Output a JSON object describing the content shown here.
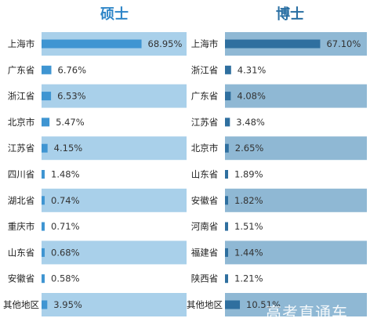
{
  "colors": {
    "left_title": "#2f86c8",
    "right_title": "#2a6fa3",
    "left_band": "#a9d0ea",
    "right_band": "#8fb8d4",
    "left_bar": "#3f95d2",
    "right_bar": "#2f6f9f"
  },
  "chart_data": [
    {
      "type": "bar",
      "orientation": "horizontal",
      "title": "硕士",
      "categories": [
        "上海市",
        "广东省",
        "浙江省",
        "北京市",
        "江苏省",
        "四川省",
        "湖北省",
        "重庆市",
        "山东省",
        "安徽省",
        "其他地区"
      ],
      "values": [
        68.95,
        6.76,
        6.53,
        5.47,
        4.15,
        1.48,
        0.74,
        0.71,
        0.68,
        0.58,
        3.95
      ],
      "labels": [
        "68.95%",
        "6.76%",
        "6.53%",
        "5.47%",
        "4.15%",
        "1.48%",
        "0.74%",
        "0.71%",
        "0.68%",
        "0.58%",
        "3.95%"
      ],
      "xlim": [
        0,
        100
      ]
    },
    {
      "type": "bar",
      "orientation": "horizontal",
      "title": "博士",
      "categories": [
        "上海市",
        "浙江省",
        "广东省",
        "江苏省",
        "北京市",
        "山东省",
        "安徽省",
        "河南省",
        "福建省",
        "陕西省",
        "其他地区"
      ],
      "values": [
        67.1,
        4.31,
        4.08,
        3.48,
        2.65,
        1.89,
        1.82,
        1.51,
        1.44,
        1.21,
        10.51
      ],
      "labels": [
        "67.10%",
        "4.31%",
        "4.08%",
        "3.48%",
        "2.65%",
        "1.89%",
        "1.82%",
        "1.51%",
        "1.44%",
        "1.21%",
        "10.51%"
      ],
      "xlim": [
        0,
        100
      ]
    }
  ],
  "watermark": "高考直通车"
}
